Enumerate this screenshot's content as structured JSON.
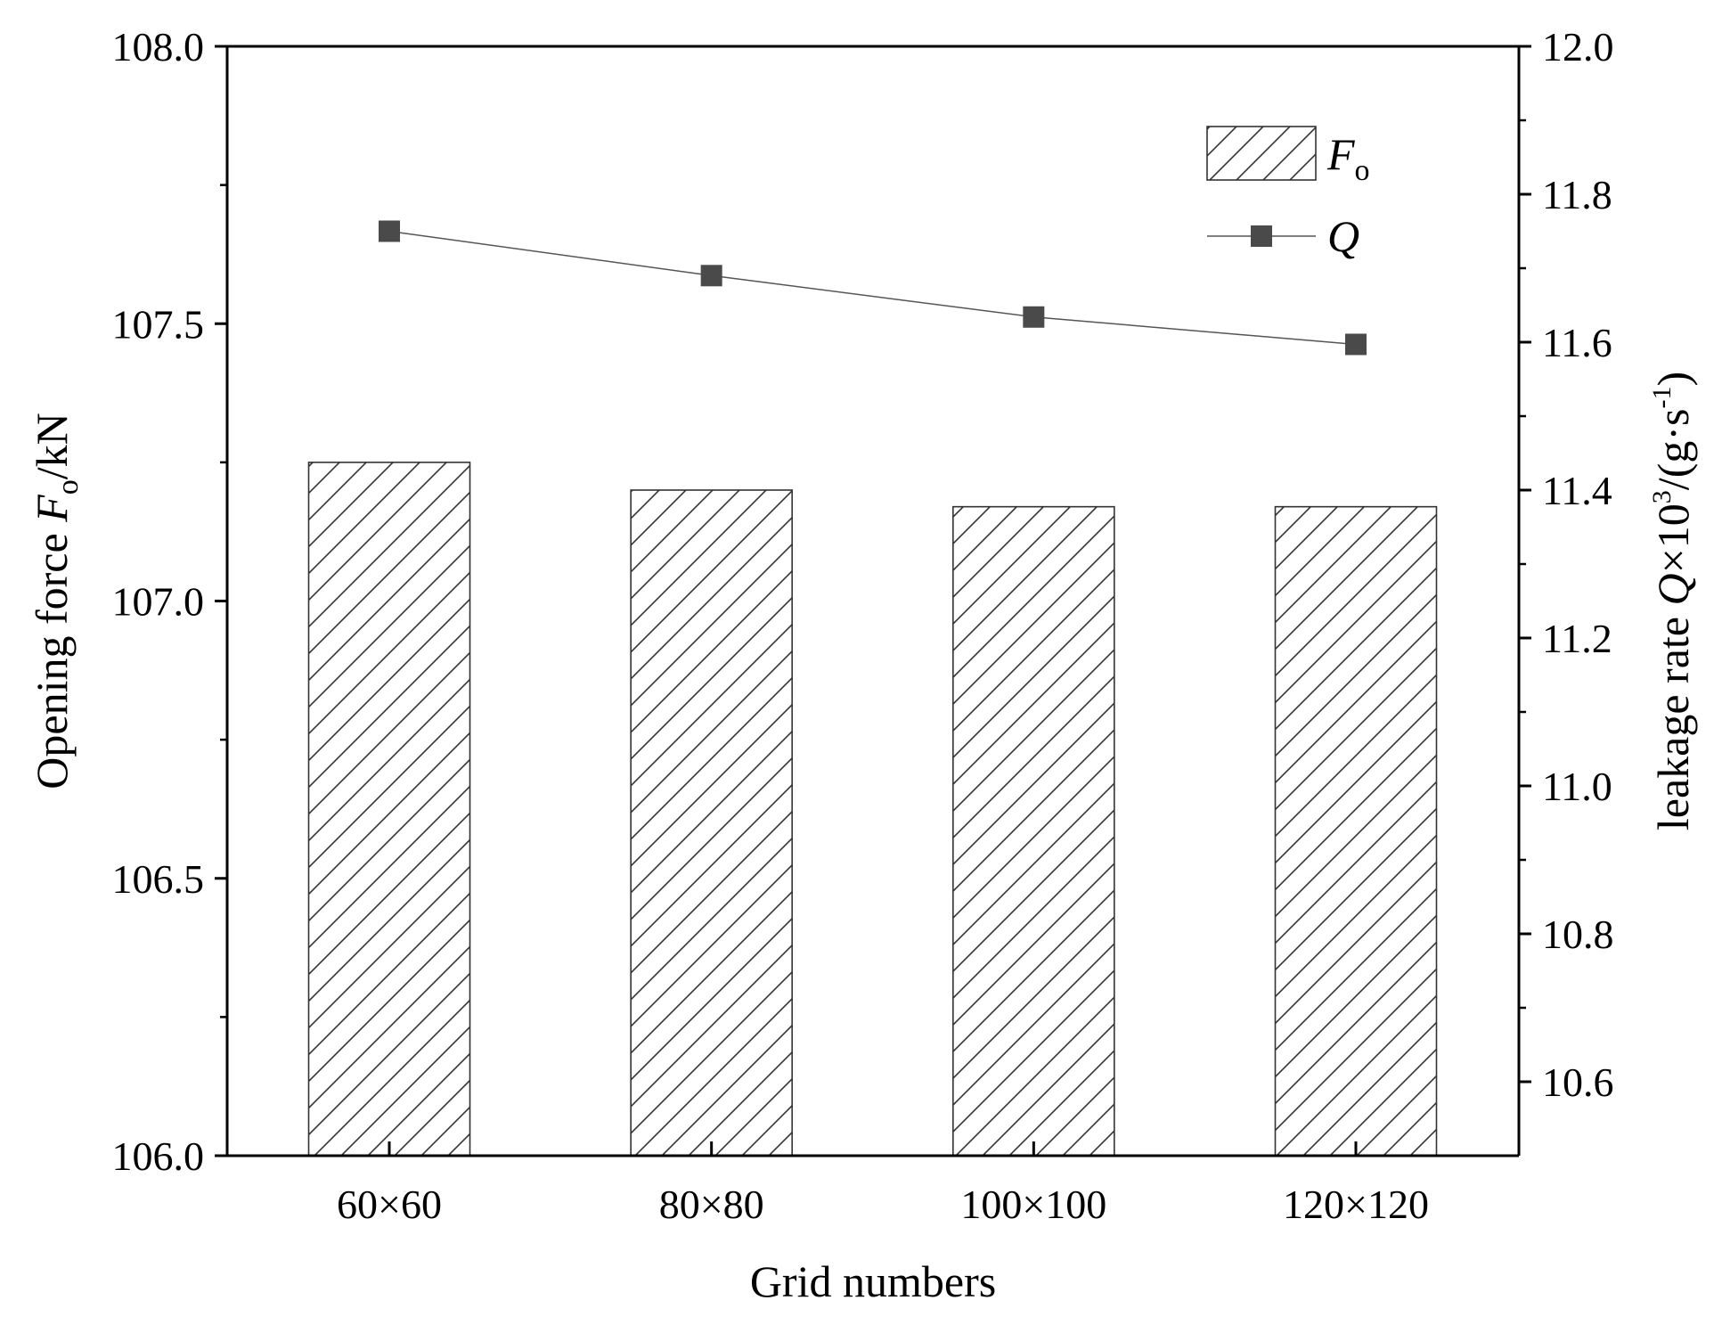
{
  "chart_data": {
    "type": "bar",
    "categories": [
      "60×60",
      "80×80",
      "100×100",
      "120×120"
    ],
    "xlabel": "Grid numbers",
    "ylabel": {
      "prefix": "Opening force ",
      "var": "F",
      "sub": "o",
      "suffix": "/kN"
    },
    "y2label": {
      "prefix": "leakage rate ",
      "var": "Q",
      "mid": "×10",
      "sup1": "3",
      "mid2": "/(g·s",
      "sup2": "-1",
      "suffix": ")"
    },
    "series": [
      {
        "name": "F",
        "name_sub": "o",
        "type": "bar",
        "axis": "left",
        "pattern": "hatch",
        "values": [
          107.25,
          107.2,
          107.17,
          107.17
        ]
      },
      {
        "name": "Q",
        "type": "line",
        "axis": "right",
        "marker": "square",
        "values": [
          11.75,
          11.69,
          11.634,
          11.597
        ]
      }
    ],
    "ylim": [
      106.0,
      108.0
    ],
    "y2lim": [
      10.5,
      12.0
    ],
    "yticks": [
      "106.0",
      "106.5",
      "107.0",
      "107.5",
      "108.0"
    ],
    "y2ticks": [
      "10.6",
      "10.8",
      "11.0",
      "11.2",
      "11.4",
      "11.6",
      "11.8",
      "12.0"
    ],
    "grid": false,
    "legend": "top-right",
    "colors": {
      "line": "#555555",
      "marker": "#4a4a4a",
      "bar_fill": "#ffffff",
      "hatch": "#333333"
    }
  }
}
